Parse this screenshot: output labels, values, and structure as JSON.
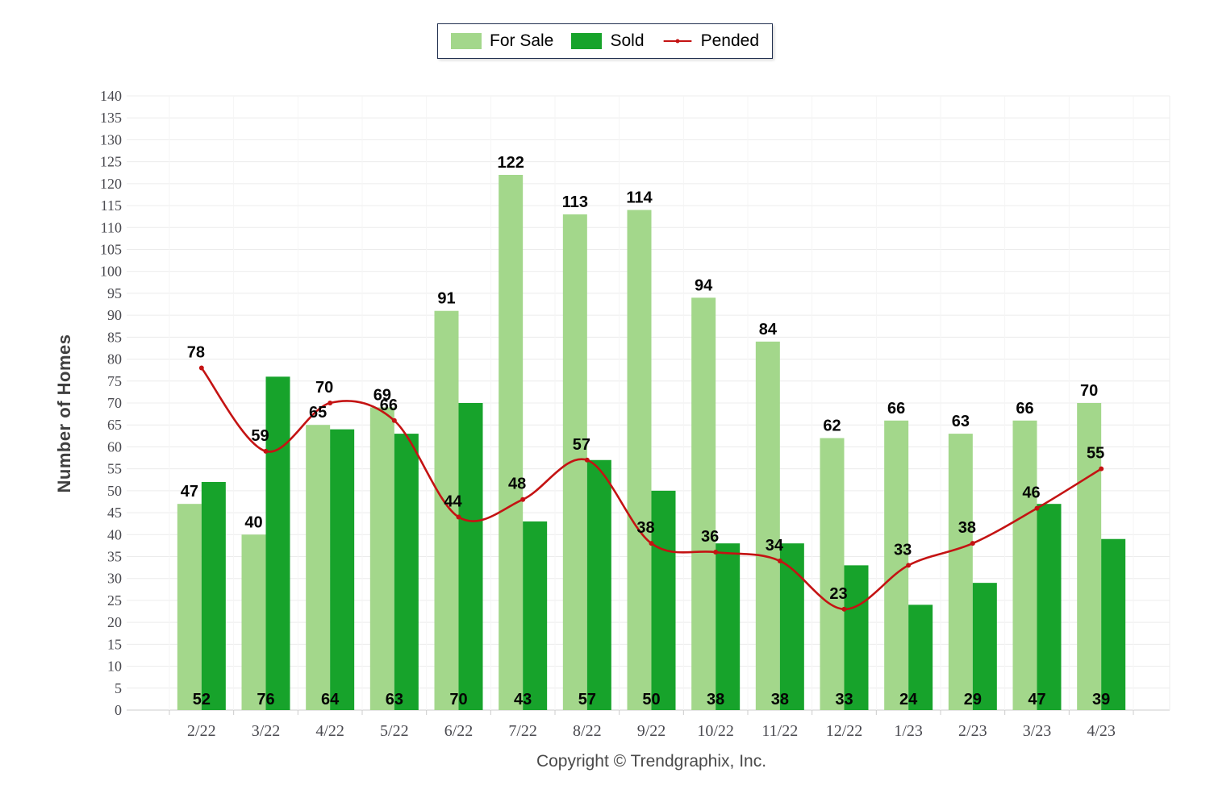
{
  "chart_data": {
    "type": "bar",
    "categories": [
      "2/22",
      "3/22",
      "4/22",
      "5/22",
      "6/22",
      "7/22",
      "8/22",
      "9/22",
      "10/22",
      "11/22",
      "12/22",
      "1/23",
      "2/23",
      "3/23",
      "4/23"
    ],
    "series": [
      {
        "name": "For Sale",
        "type": "bar",
        "color": "#a3d78b",
        "values": [
          47,
          40,
          65,
          69,
          91,
          122,
          113,
          114,
          94,
          84,
          62,
          66,
          63,
          66,
          70
        ]
      },
      {
        "name": "Sold",
        "type": "bar",
        "color": "#17a32b",
        "values": [
          52,
          76,
          64,
          63,
          70,
          43,
          57,
          50,
          38,
          38,
          33,
          24,
          29,
          47,
          39
        ]
      },
      {
        "name": "Pended",
        "type": "line",
        "color": "#c41313",
        "values": [
          78,
          59,
          70,
          66,
          44,
          48,
          57,
          38,
          36,
          34,
          23,
          33,
          38,
          46,
          55
        ]
      }
    ],
    "title": "",
    "xlabel": "",
    "ylabel": "Number of Homes",
    "ylim": [
      0,
      140
    ],
    "ytick_step": 5,
    "grid": true,
    "legend_position": "top-center",
    "footer": "Copyright © Trendgraphix, Inc.",
    "colors": {
      "grid": "#ececec",
      "axis": "#cccccc",
      "tick_label": "#4a4a50",
      "value_label": "#050505",
      "background": "#ffffff"
    }
  }
}
